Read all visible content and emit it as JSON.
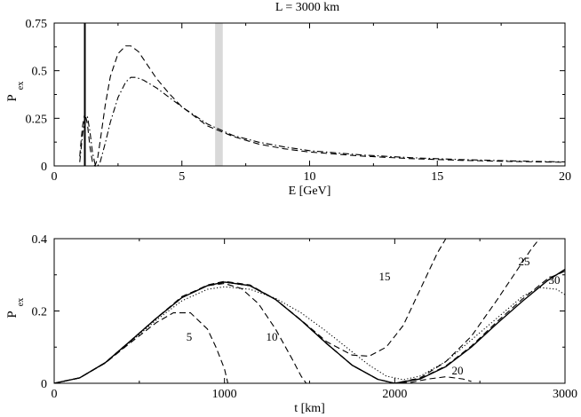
{
  "chart_data": [
    {
      "type": "line",
      "title": "L = 3000 km",
      "xlabel": "E [GeV]",
      "ylabel_main": "P",
      "ylabel_sub": "ex",
      "xlim": [
        0,
        20
      ],
      "ylim": [
        0,
        0.75
      ],
      "xticks": [
        0,
        5,
        10,
        15,
        20
      ],
      "xtick_labels": [
        "0",
        "5",
        "10",
        "15",
        "20"
      ],
      "yticks": [
        0,
        0.25,
        0.5,
        0.75
      ],
      "ytick_labels": [
        "0",
        "0.25",
        "0.5",
        "0.75"
      ],
      "grid": false,
      "shaded_band": {
        "x": [
          6.3,
          6.6
        ],
        "color": "#d9d9d9"
      },
      "vertical_line": {
        "x": 1.2
      },
      "series": [
        {
          "style": "dashed",
          "x": [
            1.0,
            1.1,
            1.2,
            1.3,
            1.4,
            1.5,
            1.6,
            1.7,
            1.8,
            2.0,
            2.2,
            2.5,
            2.8,
            3.0,
            3.3,
            3.6,
            4.0,
            4.5,
            5.0,
            6.0,
            7.0,
            8.0,
            9.0,
            10.0,
            12.0,
            14.0,
            16.0,
            18.0,
            20.0
          ],
          "y": [
            0.05,
            0.2,
            0.28,
            0.22,
            0.1,
            0.02,
            0.0,
            0.04,
            0.13,
            0.32,
            0.47,
            0.59,
            0.63,
            0.63,
            0.6,
            0.54,
            0.46,
            0.38,
            0.31,
            0.21,
            0.155,
            0.115,
            0.09,
            0.073,
            0.052,
            0.038,
            0.029,
            0.023,
            0.019
          ]
        },
        {
          "style": "dash-dot",
          "x": [
            1.0,
            1.1,
            1.2,
            1.3,
            1.4,
            1.5,
            1.6,
            1.7,
            1.8,
            1.9,
            2.0,
            2.2,
            2.5,
            2.8,
            3.0,
            3.2,
            3.5,
            4.0,
            4.5,
            5.0,
            6.0,
            7.0,
            8.0,
            9.0,
            10.0,
            12.0,
            14.0,
            16.0,
            18.0,
            20.0
          ],
          "y": [
            0.02,
            0.15,
            0.25,
            0.26,
            0.18,
            0.07,
            0.01,
            0.0,
            0.02,
            0.07,
            0.12,
            0.23,
            0.36,
            0.44,
            0.465,
            0.465,
            0.45,
            0.41,
            0.36,
            0.31,
            0.22,
            0.16,
            0.125,
            0.1,
            0.08,
            0.058,
            0.043,
            0.033,
            0.026,
            0.021
          ]
        }
      ]
    },
    {
      "type": "line",
      "xlabel": "t [km]",
      "ylabel_main": "P",
      "ylabel_sub": "ex",
      "xlim": [
        0,
        3000
      ],
      "ylim": [
        0,
        0.4
      ],
      "xticks": [
        0,
        1000,
        2000,
        3000
      ],
      "xtick_labels": [
        "0",
        "1000",
        "2000",
        "3000"
      ],
      "yticks": [
        0,
        0.2,
        0.4
      ],
      "ytick_labels": [
        "0",
        "0.2",
        "0.4"
      ],
      "grid": false,
      "series": [
        {
          "name": "",
          "style": "solid",
          "x": [
            0,
            150,
            300,
            450,
            600,
            750,
            900,
            1000,
            1150,
            1300,
            1450,
            1600,
            1750,
            1900,
            2000,
            2150,
            2300,
            2450,
            2600,
            2750,
            2900,
            3000
          ],
          "y": [
            0.0,
            0.015,
            0.057,
            0.118,
            0.18,
            0.237,
            0.27,
            0.28,
            0.27,
            0.232,
            0.174,
            0.11,
            0.05,
            0.011,
            0.0,
            0.012,
            0.046,
            0.1,
            0.165,
            0.227,
            0.285,
            0.315
          ]
        },
        {
          "name": "",
          "style": "dotted",
          "x": [
            0,
            150,
            300,
            450,
            600,
            750,
            900,
            1000,
            1150,
            1300,
            1450,
            1600,
            1750,
            1850,
            1950,
            2050,
            2150,
            2300,
            2450,
            2600,
            2750,
            2850,
            2950,
            3000
          ],
          "y": [
            0.0,
            0.015,
            0.056,
            0.115,
            0.175,
            0.228,
            0.26,
            0.267,
            0.26,
            0.235,
            0.195,
            0.143,
            0.087,
            0.05,
            0.02,
            0.01,
            0.02,
            0.06,
            0.12,
            0.18,
            0.24,
            0.265,
            0.26,
            0.245
          ]
        }
      ],
      "labeled_series": [
        {
          "label": "5",
          "style": "dashed",
          "x": [
            0,
            150,
            300,
            450,
            600,
            700,
            800,
            900,
            950,
            1000,
            1020
          ],
          "y": [
            0.0,
            0.015,
            0.056,
            0.113,
            0.168,
            0.195,
            0.195,
            0.15,
            0.1,
            0.04,
            0.0
          ]
        },
        {
          "label": "10",
          "style": "dashed",
          "x": [
            0,
            150,
            300,
            450,
            600,
            750,
            900,
            1000,
            1100,
            1200,
            1300,
            1400,
            1450,
            1480
          ],
          "y": [
            0.0,
            0.015,
            0.057,
            0.117,
            0.18,
            0.24,
            0.27,
            0.276,
            0.262,
            0.22,
            0.15,
            0.065,
            0.02,
            0.0
          ]
        },
        {
          "label": "15",
          "style": "dashed",
          "x": [
            0,
            150,
            300,
            450,
            600,
            750,
            900,
            1000,
            1150,
            1300,
            1450,
            1600,
            1750,
            1850,
            1950,
            2050,
            2150,
            2250,
            2300,
            2330
          ],
          "y": [
            0.0,
            0.015,
            0.057,
            0.118,
            0.18,
            0.238,
            0.272,
            0.282,
            0.272,
            0.232,
            0.175,
            0.115,
            0.078,
            0.075,
            0.1,
            0.16,
            0.26,
            0.36,
            0.4,
            0.43
          ]
        },
        {
          "label": "20",
          "style": "dashed",
          "x": [
            0,
            150,
            300,
            450,
            600,
            750,
            900,
            1000,
            1150,
            1300,
            1450,
            1600,
            1750,
            1900,
            2000,
            2100,
            2200,
            2300,
            2400,
            2450
          ],
          "y": [
            0.0,
            0.015,
            0.057,
            0.118,
            0.18,
            0.237,
            0.27,
            0.28,
            0.27,
            0.232,
            0.174,
            0.11,
            0.05,
            0.011,
            0.0,
            0.003,
            0.012,
            0.018,
            0.012,
            0.005
          ]
        },
        {
          "label": "25",
          "style": "dashed",
          "x": [
            0,
            150,
            300,
            450,
            600,
            750,
            900,
            1000,
            1150,
            1300,
            1450,
            1600,
            1750,
            1900,
            2000,
            2150,
            2300,
            2450,
            2600,
            2700,
            2800,
            2850
          ],
          "y": [
            0.0,
            0.015,
            0.057,
            0.118,
            0.18,
            0.237,
            0.27,
            0.28,
            0.27,
            0.232,
            0.174,
            0.11,
            0.05,
            0.011,
            0.0,
            0.015,
            0.06,
            0.13,
            0.23,
            0.3,
            0.37,
            0.4
          ]
        },
        {
          "label": "30",
          "style": "dashed",
          "x": [
            0,
            150,
            300,
            450,
            600,
            750,
            900,
            1000,
            1150,
            1300,
            1450,
            1600,
            1750,
            1900,
            2000,
            2150,
            2300,
            2450,
            2600,
            2750,
            2900,
            3000
          ],
          "y": [
            0.0,
            0.015,
            0.057,
            0.118,
            0.18,
            0.237,
            0.27,
            0.28,
            0.27,
            0.232,
            0.174,
            0.11,
            0.05,
            0.011,
            0.0,
            0.013,
            0.048,
            0.103,
            0.17,
            0.233,
            0.29,
            0.31
          ]
        }
      ]
    }
  ]
}
